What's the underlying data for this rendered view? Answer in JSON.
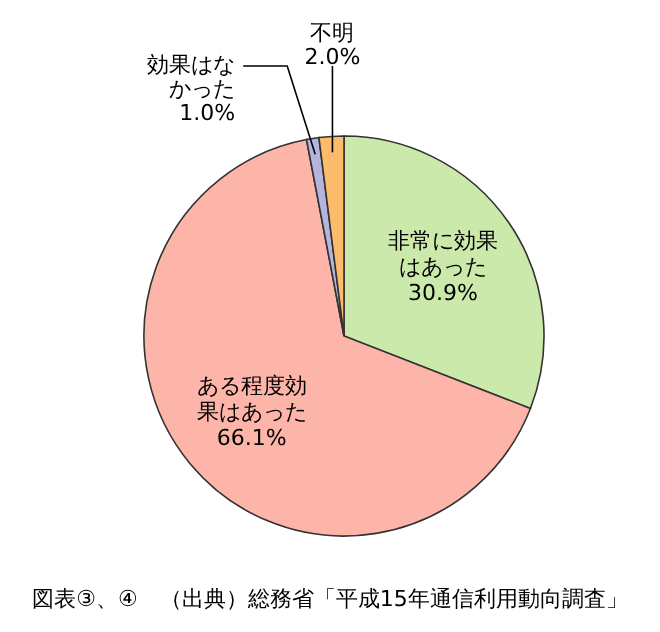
{
  "chart_data": {
    "type": "pie",
    "categories": [
      "非常に効果はあった",
      "ある程度効果はあった",
      "効果はなかった",
      "不明"
    ],
    "values": [
      30.9,
      66.1,
      1.0,
      2.0
    ],
    "value_labels": [
      "30.9%",
      "66.1%",
      "1.0%",
      "2.0%"
    ],
    "colors": [
      "#cce9ac",
      "#fdb5a9",
      "#b4b4dc",
      "#fcbc6c"
    ],
    "annotations": [
      "図表③、④　（出典）総務省「平成15年通信利用動向調査」"
    ]
  }
}
